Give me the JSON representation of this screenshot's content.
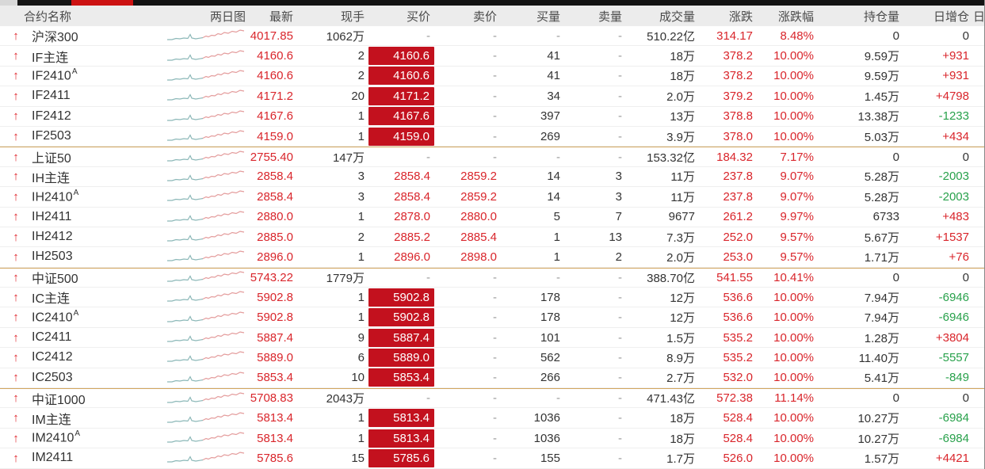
{
  "colors": {
    "up_red": "#d9252b",
    "down_green": "#28a14b",
    "bid_cell_bg": "#c3111e",
    "bid_cell_text": "#ffffff",
    "header_bg": "#ececec",
    "group_divider": "#d2a55e",
    "topbar_red": "#cc1212",
    "topbar_black": "#131313",
    "spark_prev_day": "#8cb8b8",
    "spark_today": "#e49c9c",
    "arrow_red": "#e0252b"
  },
  "header": {
    "cols": {
      "name": "合约名称",
      "spark": "两日图",
      "last": "最新",
      "vol": "现手",
      "bid": "买价",
      "ask": "卖价",
      "bid_vol": "买量",
      "ask_vol": "卖量",
      "volume": "成交量",
      "chg": "涨跌",
      "chg_pct": "涨跌幅",
      "oi": "持仓量",
      "oi_chg": "日增仓",
      "extra": "日"
    }
  },
  "table": {
    "rows": [
      {
        "name": "沪深300",
        "sup": "",
        "group_start": false,
        "bid_style": "dash",
        "last": "4017.85",
        "vol": "1062万",
        "bid": "-",
        "ask": "-",
        "bid_vol": "-",
        "ask_vol": "-",
        "volume": "510.22亿",
        "chg": "314.17",
        "chg_pct": "8.48%",
        "oi": "0",
        "oi_chg": "0",
        "oi_dir": "flat"
      },
      {
        "name": "IF主连",
        "sup": "",
        "group_start": false,
        "bid_style": "cell",
        "last": "4160.6",
        "vol": "2",
        "bid": "4160.6",
        "ask": "-",
        "bid_vol": "41",
        "ask_vol": "-",
        "volume": "18万",
        "chg": "378.2",
        "chg_pct": "10.00%",
        "oi": "9.59万",
        "oi_chg": "+931",
        "oi_dir": "up"
      },
      {
        "name": "IF2410",
        "sup": "A",
        "group_start": false,
        "bid_style": "cell",
        "last": "4160.6",
        "vol": "2",
        "bid": "4160.6",
        "ask": "-",
        "bid_vol": "41",
        "ask_vol": "-",
        "volume": "18万",
        "chg": "378.2",
        "chg_pct": "10.00%",
        "oi": "9.59万",
        "oi_chg": "+931",
        "oi_dir": "up"
      },
      {
        "name": "IF2411",
        "sup": "",
        "group_start": false,
        "bid_style": "cell",
        "last": "4171.2",
        "vol": "20",
        "bid": "4171.2",
        "ask": "-",
        "bid_vol": "34",
        "ask_vol": "-",
        "volume": "2.0万",
        "chg": "379.2",
        "chg_pct": "10.00%",
        "oi": "1.45万",
        "oi_chg": "+4798",
        "oi_dir": "up"
      },
      {
        "name": "IF2412",
        "sup": "",
        "group_start": false,
        "bid_style": "cell",
        "last": "4167.6",
        "vol": "1",
        "bid": "4167.6",
        "ask": "-",
        "bid_vol": "397",
        "ask_vol": "-",
        "volume": "13万",
        "chg": "378.8",
        "chg_pct": "10.00%",
        "oi": "13.38万",
        "oi_chg": "-1233",
        "oi_dir": "down"
      },
      {
        "name": "IF2503",
        "sup": "",
        "group_start": false,
        "bid_style": "cell",
        "last": "4159.0",
        "vol": "1",
        "bid": "4159.0",
        "ask": "-",
        "bid_vol": "269",
        "ask_vol": "-",
        "volume": "3.9万",
        "chg": "378.0",
        "chg_pct": "10.00%",
        "oi": "5.03万",
        "oi_chg": "+434",
        "oi_dir": "up"
      },
      {
        "name": "上证50",
        "sup": "",
        "group_start": true,
        "bid_style": "dash",
        "last": "2755.40",
        "vol": "147万",
        "bid": "-",
        "ask": "-",
        "bid_vol": "-",
        "ask_vol": "-",
        "volume": "153.32亿",
        "chg": "184.32",
        "chg_pct": "7.17%",
        "oi": "0",
        "oi_chg": "0",
        "oi_dir": "flat"
      },
      {
        "name": "IH主连",
        "sup": "",
        "group_start": false,
        "bid_style": "text",
        "last": "2858.4",
        "vol": "3",
        "bid": "2858.4",
        "ask": "2859.2",
        "bid_vol": "14",
        "ask_vol": "3",
        "volume": "11万",
        "chg": "237.8",
        "chg_pct": "9.07%",
        "oi": "5.28万",
        "oi_chg": "-2003",
        "oi_dir": "down"
      },
      {
        "name": "IH2410",
        "sup": "A",
        "group_start": false,
        "bid_style": "text",
        "last": "2858.4",
        "vol": "3",
        "bid": "2858.4",
        "ask": "2859.2",
        "bid_vol": "14",
        "ask_vol": "3",
        "volume": "11万",
        "chg": "237.8",
        "chg_pct": "9.07%",
        "oi": "5.28万",
        "oi_chg": "-2003",
        "oi_dir": "down"
      },
      {
        "name": "IH2411",
        "sup": "",
        "group_start": false,
        "bid_style": "text",
        "last": "2880.0",
        "vol": "1",
        "bid": "2878.0",
        "ask": "2880.0",
        "bid_vol": "5",
        "ask_vol": "7",
        "volume": "9677",
        "chg": "261.2",
        "chg_pct": "9.97%",
        "oi": "6733",
        "oi_chg": "+483",
        "oi_dir": "up"
      },
      {
        "name": "IH2412",
        "sup": "",
        "group_start": false,
        "bid_style": "text",
        "last": "2885.0",
        "vol": "2",
        "bid": "2885.2",
        "ask": "2885.4",
        "bid_vol": "1",
        "ask_vol": "13",
        "volume": "7.3万",
        "chg": "252.0",
        "chg_pct": "9.57%",
        "oi": "5.67万",
        "oi_chg": "+1537",
        "oi_dir": "up"
      },
      {
        "name": "IH2503",
        "sup": "",
        "group_start": false,
        "bid_style": "text",
        "last": "2896.0",
        "vol": "1",
        "bid": "2896.0",
        "ask": "2898.0",
        "bid_vol": "1",
        "ask_vol": "2",
        "volume": "2.0万",
        "chg": "253.0",
        "chg_pct": "9.57%",
        "oi": "1.71万",
        "oi_chg": "+76",
        "oi_dir": "up"
      },
      {
        "name": "中证500",
        "sup": "",
        "group_start": true,
        "bid_style": "dash",
        "last": "5743.22",
        "vol": "1779万",
        "bid": "-",
        "ask": "-",
        "bid_vol": "-",
        "ask_vol": "-",
        "volume": "388.70亿",
        "chg": "541.55",
        "chg_pct": "10.41%",
        "oi": "0",
        "oi_chg": "0",
        "oi_dir": "flat"
      },
      {
        "name": "IC主连",
        "sup": "",
        "group_start": false,
        "bid_style": "cell",
        "last": "5902.8",
        "vol": "1",
        "bid": "5902.8",
        "ask": "-",
        "bid_vol": "178",
        "ask_vol": "-",
        "volume": "12万",
        "chg": "536.6",
        "chg_pct": "10.00%",
        "oi": "7.94万",
        "oi_chg": "-6946",
        "oi_dir": "down"
      },
      {
        "name": "IC2410",
        "sup": "A",
        "group_start": false,
        "bid_style": "cell",
        "last": "5902.8",
        "vol": "1",
        "bid": "5902.8",
        "ask": "-",
        "bid_vol": "178",
        "ask_vol": "-",
        "volume": "12万",
        "chg": "536.6",
        "chg_pct": "10.00%",
        "oi": "7.94万",
        "oi_chg": "-6946",
        "oi_dir": "down"
      },
      {
        "name": "IC2411",
        "sup": "",
        "group_start": false,
        "bid_style": "cell",
        "last": "5887.4",
        "vol": "9",
        "bid": "5887.4",
        "ask": "-",
        "bid_vol": "101",
        "ask_vol": "-",
        "volume": "1.5万",
        "chg": "535.2",
        "chg_pct": "10.00%",
        "oi": "1.28万",
        "oi_chg": "+3804",
        "oi_dir": "up"
      },
      {
        "name": "IC2412",
        "sup": "",
        "group_start": false,
        "bid_style": "cell",
        "last": "5889.0",
        "vol": "6",
        "bid": "5889.0",
        "ask": "-",
        "bid_vol": "562",
        "ask_vol": "-",
        "volume": "8.9万",
        "chg": "535.2",
        "chg_pct": "10.00%",
        "oi": "11.40万",
        "oi_chg": "-5557",
        "oi_dir": "down"
      },
      {
        "name": "IC2503",
        "sup": "",
        "group_start": false,
        "bid_style": "cell",
        "last": "5853.4",
        "vol": "10",
        "bid": "5853.4",
        "ask": "-",
        "bid_vol": "266",
        "ask_vol": "-",
        "volume": "2.7万",
        "chg": "532.0",
        "chg_pct": "10.00%",
        "oi": "5.41万",
        "oi_chg": "-849",
        "oi_dir": "down"
      },
      {
        "name": "中证1000",
        "sup": "",
        "group_start": true,
        "bid_style": "dash",
        "last": "5708.83",
        "vol": "2043万",
        "bid": "-",
        "ask": "-",
        "bid_vol": "-",
        "ask_vol": "-",
        "volume": "471.43亿",
        "chg": "572.38",
        "chg_pct": "11.14%",
        "oi": "0",
        "oi_chg": "0",
        "oi_dir": "flat"
      },
      {
        "name": "IM主连",
        "sup": "",
        "group_start": false,
        "bid_style": "cell",
        "last": "5813.4",
        "vol": "1",
        "bid": "5813.4",
        "ask": "-",
        "bid_vol": "1036",
        "ask_vol": "-",
        "volume": "18万",
        "chg": "528.4",
        "chg_pct": "10.00%",
        "oi": "10.27万",
        "oi_chg": "-6984",
        "oi_dir": "down"
      },
      {
        "name": "IM2410",
        "sup": "A",
        "group_start": false,
        "bid_style": "cell",
        "last": "5813.4",
        "vol": "1",
        "bid": "5813.4",
        "ask": "-",
        "bid_vol": "1036",
        "ask_vol": "-",
        "volume": "18万",
        "chg": "528.4",
        "chg_pct": "10.00%",
        "oi": "10.27万",
        "oi_chg": "-6984",
        "oi_dir": "down"
      },
      {
        "name": "IM2411",
        "sup": "",
        "group_start": false,
        "bid_style": "cell",
        "last": "5785.6",
        "vol": "15",
        "bid": "5785.6",
        "ask": "-",
        "bid_vol": "155",
        "ask_vol": "-",
        "volume": "1.7万",
        "chg": "526.0",
        "chg_pct": "10.00%",
        "oi": "1.57万",
        "oi_chg": "+4421",
        "oi_dir": "up"
      }
    ]
  }
}
